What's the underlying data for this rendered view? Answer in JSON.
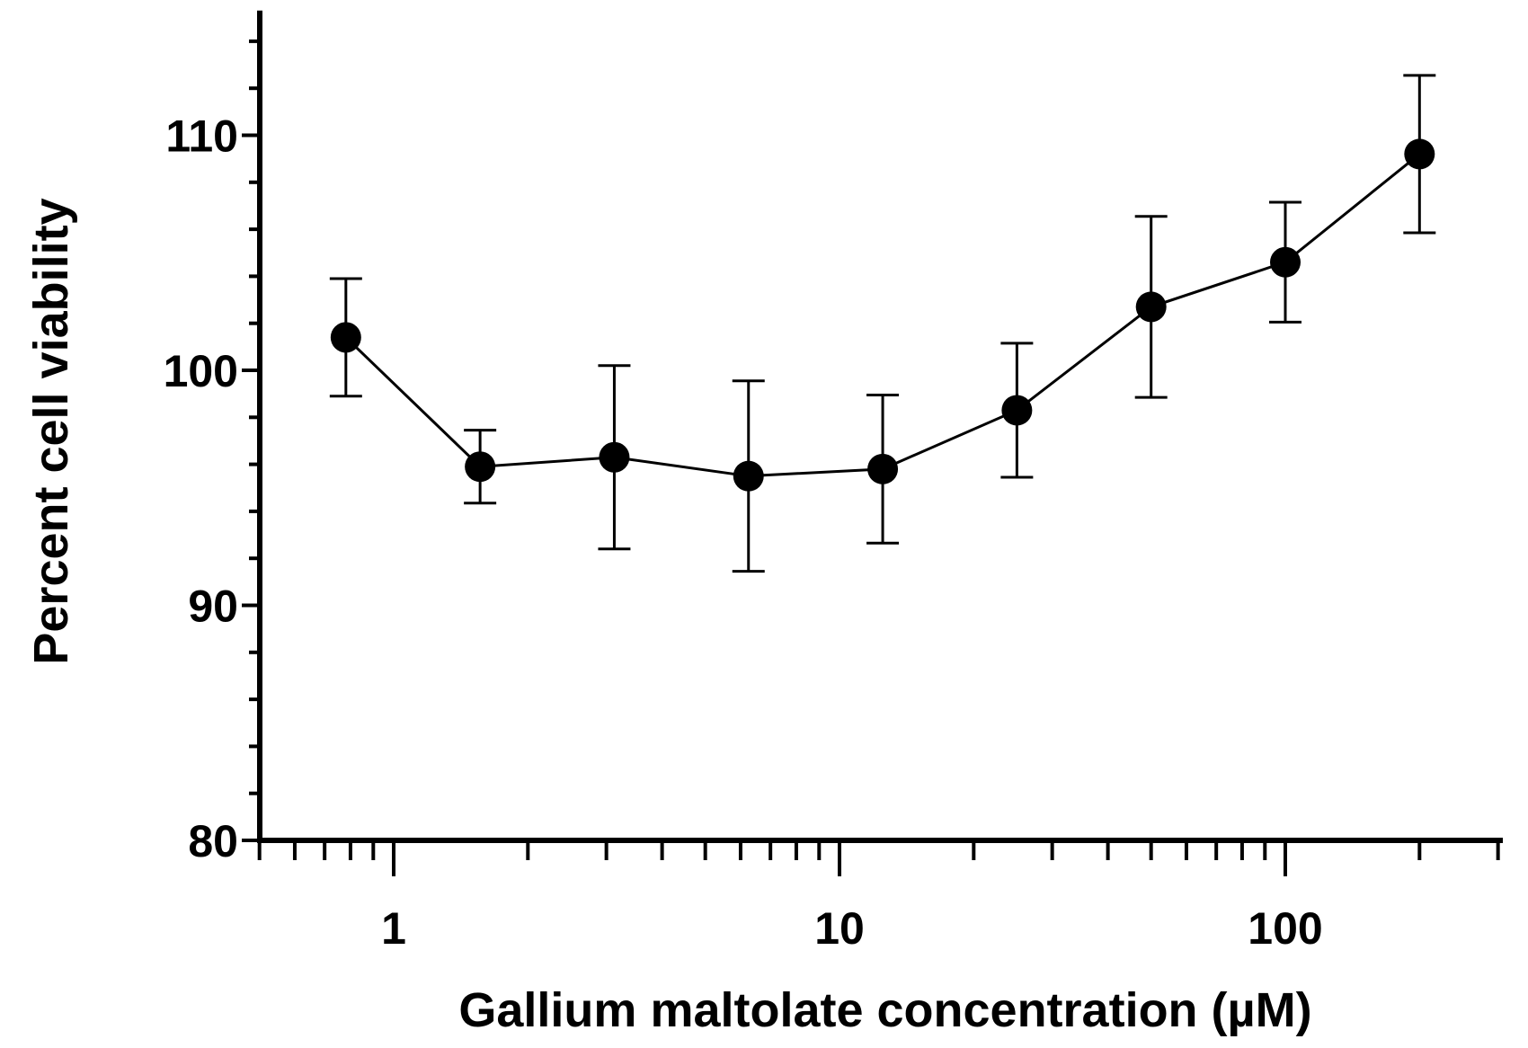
{
  "chart_data": {
    "type": "line",
    "title": "",
    "xlabel": "Gallium maltolate concentration (µM)",
    "ylabel": "Percent cell viability",
    "xscale": "log",
    "xlim": [
      0.5,
      300
    ],
    "ylim": [
      80,
      115
    ],
    "x_ticks": [
      1,
      10,
      100
    ],
    "x_tick_labels": [
      "1",
      "10",
      "100"
    ],
    "y_ticks": [
      80,
      90,
      100,
      110
    ],
    "y_tick_labels": [
      "80",
      "90",
      "100",
      "110"
    ],
    "grid": false,
    "legend": null,
    "series": [
      {
        "name": "Cell viability",
        "color": "#000000",
        "marker": "circle",
        "x": [
          0.78125,
          1.5625,
          3.125,
          6.25,
          12.5,
          25,
          50,
          100,
          200
        ],
        "y": [
          101.4,
          95.9,
          96.3,
          95.5,
          95.8,
          98.3,
          102.7,
          104.6,
          109.2
        ],
        "error": [
          2.5,
          1.55,
          3.9,
          4.05,
          3.15,
          2.85,
          3.85,
          2.55,
          3.35
        ]
      }
    ]
  }
}
